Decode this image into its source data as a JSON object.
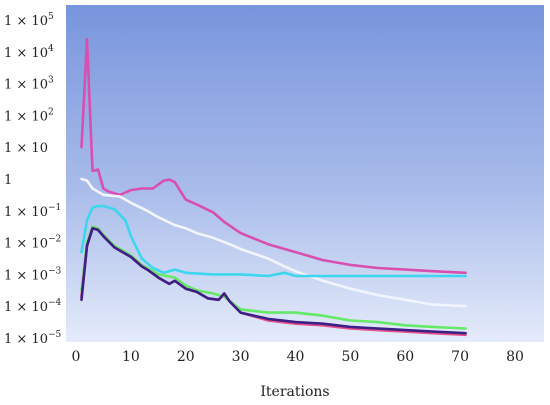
{
  "chart_data": {
    "type": "line",
    "title": "",
    "xlabel": "Iterations",
    "ylabel": "",
    "xlim": [
      0,
      80
    ],
    "ylim_exp": [
      -5,
      5
    ],
    "yscale": "log",
    "grid": false,
    "background": "gradient-blue",
    "x_ticks": [
      {
        "value": 0,
        "label": "0"
      },
      {
        "value": 10,
        "label": "10"
      },
      {
        "value": 20,
        "label": "20"
      },
      {
        "value": 30,
        "label": "30"
      },
      {
        "value": 40,
        "label": "40"
      },
      {
        "value": 50,
        "label": "50"
      },
      {
        "value": 60,
        "label": "60"
      },
      {
        "value": 70,
        "label": "70"
      },
      {
        "value": 80,
        "label": "80"
      }
    ],
    "y_ticks": [
      {
        "exp": 5,
        "base": "1 × 10",
        "sup": "5"
      },
      {
        "exp": 4,
        "base": "1 × 10",
        "sup": "4"
      },
      {
        "exp": 3,
        "base": "1 × 10",
        "sup": "3"
      },
      {
        "exp": 2,
        "base": "1 × 10",
        "sup": "2"
      },
      {
        "exp": 1,
        "base": "1 × 10",
        "sup": ""
      },
      {
        "exp": 0,
        "base": "1",
        "sup": ""
      },
      {
        "exp": -1,
        "base": "1 × 10",
        "sup": "−1"
      },
      {
        "exp": -2,
        "base": "1 × 10",
        "sup": "−2"
      },
      {
        "exp": -3,
        "base": "1 × 10",
        "sup": "−3"
      },
      {
        "exp": -4,
        "base": "1 × 10",
        "sup": "−4"
      },
      {
        "exp": -5,
        "base": "1 × 10",
        "sup": "−5"
      }
    ],
    "series": [
      {
        "color": "#d94fb0",
        "points": [
          [
            1,
            1
          ],
          [
            2,
            4.4
          ],
          [
            3,
            0.25
          ],
          [
            4,
            0.3
          ],
          [
            5,
            -0.3
          ],
          [
            6,
            -0.4
          ],
          [
            8,
            -0.5
          ],
          [
            10,
            -0.35
          ],
          [
            12,
            -0.3
          ],
          [
            14,
            -0.3
          ],
          [
            16,
            -0.05
          ],
          [
            17,
            -0.02
          ],
          [
            18,
            -0.1
          ],
          [
            20,
            -0.65
          ],
          [
            22,
            -0.8
          ],
          [
            25,
            -1.05
          ],
          [
            27,
            -1.35
          ],
          [
            30,
            -1.7
          ],
          [
            35,
            -2.05
          ],
          [
            40,
            -2.3
          ],
          [
            45,
            -2.55
          ],
          [
            50,
            -2.7
          ],
          [
            55,
            -2.8
          ],
          [
            60,
            -2.85
          ],
          [
            65,
            -2.9
          ],
          [
            71,
            -2.95
          ]
        ]
      },
      {
        "color": "#f2f4ff",
        "points": [
          [
            1,
            0
          ],
          [
            2,
            -0.05
          ],
          [
            3,
            -0.3
          ],
          [
            5,
            -0.5
          ],
          [
            8,
            -0.55
          ],
          [
            10,
            -0.75
          ],
          [
            13,
            -1.0
          ],
          [
            15,
            -1.2
          ],
          [
            18,
            -1.45
          ],
          [
            20,
            -1.55
          ],
          [
            22,
            -1.7
          ],
          [
            25,
            -1.85
          ],
          [
            28,
            -2.05
          ],
          [
            30,
            -2.2
          ],
          [
            35,
            -2.5
          ],
          [
            38,
            -2.75
          ],
          [
            40,
            -2.9
          ],
          [
            45,
            -3.2
          ],
          [
            50,
            -3.45
          ],
          [
            55,
            -3.65
          ],
          [
            60,
            -3.8
          ],
          [
            65,
            -3.95
          ],
          [
            71,
            -4.0
          ]
        ]
      },
      {
        "color": "#3ed6ee",
        "points": [
          [
            1,
            -2.3
          ],
          [
            2,
            -1.3
          ],
          [
            3,
            -0.9
          ],
          [
            4,
            -0.85
          ],
          [
            5,
            -0.85
          ],
          [
            7,
            -0.95
          ],
          [
            9,
            -1.3
          ],
          [
            10,
            -1.8
          ],
          [
            12,
            -2.5
          ],
          [
            14,
            -2.8
          ],
          [
            16,
            -2.95
          ],
          [
            18,
            -2.85
          ],
          [
            20,
            -2.95
          ],
          [
            25,
            -3.0
          ],
          [
            30,
            -3.0
          ],
          [
            35,
            -3.05
          ],
          [
            38,
            -2.95
          ],
          [
            40,
            -3.05
          ],
          [
            50,
            -3.05
          ],
          [
            60,
            -3.05
          ],
          [
            71,
            -3.05
          ]
        ]
      },
      {
        "color": "#66e868",
        "points": [
          [
            1,
            -3.5
          ],
          [
            2,
            -2.0
          ],
          [
            3,
            -1.5
          ],
          [
            4,
            -1.55
          ],
          [
            5,
            -1.75
          ],
          [
            7,
            -2.1
          ],
          [
            10,
            -2.4
          ],
          [
            12,
            -2.7
          ],
          [
            15,
            -3.0
          ],
          [
            18,
            -3.1
          ],
          [
            20,
            -3.35
          ],
          [
            22,
            -3.5
          ],
          [
            25,
            -3.6
          ],
          [
            27,
            -3.7
          ],
          [
            30,
            -4.1
          ],
          [
            35,
            -4.2
          ],
          [
            40,
            -4.2
          ],
          [
            45,
            -4.3
          ],
          [
            50,
            -4.45
          ],
          [
            55,
            -4.5
          ],
          [
            60,
            -4.6
          ],
          [
            65,
            -4.65
          ],
          [
            71,
            -4.7
          ]
        ]
      },
      {
        "color": "#e8508a",
        "points": [
          [
            1,
            -3.7
          ],
          [
            2,
            -2.1
          ],
          [
            3,
            -1.55
          ],
          [
            4,
            -1.6
          ],
          [
            5,
            -1.8
          ],
          [
            7,
            -2.15
          ],
          [
            10,
            -2.45
          ],
          [
            12,
            -2.75
          ],
          [
            13,
            -2.85
          ],
          [
            15,
            -3.1
          ],
          [
            17,
            -3.3
          ],
          [
            18,
            -3.2
          ],
          [
            20,
            -3.45
          ],
          [
            22,
            -3.55
          ],
          [
            24,
            -3.75
          ],
          [
            26,
            -3.8
          ],
          [
            27,
            -3.6
          ],
          [
            28,
            -3.85
          ],
          [
            30,
            -4.2
          ],
          [
            35,
            -4.45
          ],
          [
            40,
            -4.55
          ],
          [
            45,
            -4.6
          ],
          [
            50,
            -4.7
          ],
          [
            55,
            -4.75
          ],
          [
            60,
            -4.8
          ],
          [
            65,
            -4.85
          ],
          [
            71,
            -4.9
          ]
        ]
      },
      {
        "color": "#3d1f86",
        "points": [
          [
            1,
            -3.8
          ],
          [
            2,
            -2.1
          ],
          [
            3,
            -1.55
          ],
          [
            4,
            -1.6
          ],
          [
            5,
            -1.8
          ],
          [
            7,
            -2.15
          ],
          [
            10,
            -2.45
          ],
          [
            12,
            -2.75
          ],
          [
            13,
            -2.85
          ],
          [
            15,
            -3.1
          ],
          [
            17,
            -3.3
          ],
          [
            18,
            -3.2
          ],
          [
            20,
            -3.45
          ],
          [
            22,
            -3.55
          ],
          [
            24,
            -3.75
          ],
          [
            26,
            -3.8
          ],
          [
            27,
            -3.6
          ],
          [
            28,
            -3.85
          ],
          [
            30,
            -4.2
          ],
          [
            35,
            -4.4
          ],
          [
            40,
            -4.5
          ],
          [
            45,
            -4.55
          ],
          [
            50,
            -4.65
          ],
          [
            55,
            -4.7
          ],
          [
            60,
            -4.75
          ],
          [
            65,
            -4.8
          ],
          [
            71,
            -4.85
          ]
        ]
      }
    ]
  }
}
